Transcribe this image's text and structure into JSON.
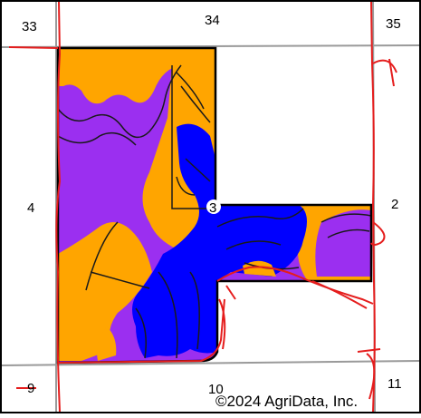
{
  "section_labels": {
    "nw_corner": "33",
    "north_center": "34",
    "ne_corner": "35",
    "west_center": "4",
    "east_center": "2",
    "sw_corner": "9",
    "south_center": "10",
    "se_corner": "11"
  },
  "field_label": "3",
  "copyright": "©2024 AgriData, Inc.",
  "colors": {
    "background": "#ffffff",
    "purple_soil": "#9b2ff0",
    "orange_soil": "#ffa500",
    "blue_soil": "#0000ff",
    "road_red": "#e51d1d",
    "section_line_gray": "#9a9a9a",
    "boundary": "#000000"
  }
}
